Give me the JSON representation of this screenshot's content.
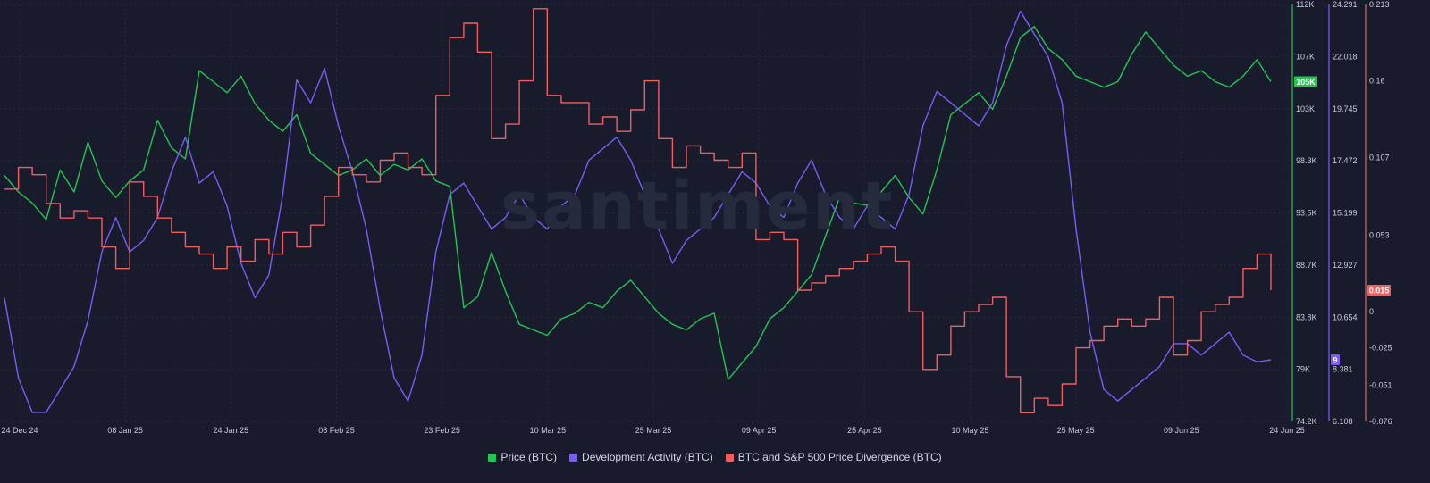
{
  "watermark": "santiment",
  "colors": {
    "background": "#181b2b",
    "grid": "#262a3c",
    "price": "#26c451",
    "dev": "#7b5cf5",
    "div": "#f05f5f"
  },
  "chart_data": {
    "type": "line",
    "grid": true,
    "legend_position": "bottom-center",
    "x_ticks": [
      "24 Dec 24",
      "08 Jan 25",
      "24 Jan 25",
      "08 Feb 25",
      "23 Feb 25",
      "10 Mar 25",
      "25 Mar 25",
      "09 Apr 25",
      "25 Apr 25",
      "10 May 25",
      "25 May 25",
      "09 Jun 25",
      "24 Jun 25"
    ],
    "axes": {
      "price": {
        "ticks": [
          "112K",
          "107K",
          "103K",
          "98.3K",
          "93.5K",
          "88.7K",
          "83.8K",
          "79K",
          "74.2K"
        ],
        "ylim": [
          74200,
          112000
        ],
        "current_label": "105K"
      },
      "dev": {
        "ticks": [
          "24.291",
          "22.018",
          "19.745",
          "17.472",
          "15.199",
          "12.927",
          "10.654",
          "8.381",
          "6.108"
        ],
        "ylim": [
          6.108,
          24.291
        ],
        "current_label": "9"
      },
      "div": {
        "ticks": [
          "0.213",
          "0.16",
          "0.107",
          "0.053",
          "0",
          "-0.025",
          "-0.051",
          "-0.076"
        ],
        "tick_values": [
          0.213,
          0.16,
          0.107,
          0.053,
          0,
          -0.025,
          -0.051,
          -0.076
        ],
        "ylim": [
          -0.076,
          0.213
        ],
        "current_label": "0.015"
      }
    },
    "series": [
      {
        "name": "Price (BTC)",
        "key": "price",
        "values": [
          96500,
          95000,
          94000,
          92500,
          97000,
          95000,
          99500,
          96000,
          94500,
          96000,
          97000,
          101500,
          99000,
          98000,
          106000,
          105000,
          104000,
          105500,
          103000,
          101500,
          100500,
          102000,
          98500,
          97500,
          96500,
          97000,
          98000,
          96500,
          97500,
          97000,
          98000,
          96000,
          95500,
          84500,
          85500,
          89500,
          86000,
          83000,
          82500,
          82000,
          83500,
          84000,
          85000,
          84500,
          86000,
          87000,
          85500,
          84000,
          83000,
          82500,
          83500,
          84000,
          78000,
          79500,
          81000,
          83500,
          84500,
          86000,
          87500,
          91000,
          94500,
          94000,
          93800,
          95000,
          96500,
          94500,
          93000,
          97000,
          102000,
          103000,
          104000,
          102500,
          105500,
          109000,
          110000,
          108000,
          107000,
          105500,
          105000,
          104500,
          105000,
          107500,
          109500,
          108000,
          106500,
          105500,
          106000,
          105000,
          104500,
          105500,
          107000,
          105000
        ]
      },
      {
        "name": "Development Activity (BTC)",
        "key": "dev",
        "values": [
          11.5,
          8.0,
          6.5,
          6.5,
          7.5,
          8.5,
          10.5,
          13.5,
          15.0,
          13.5,
          14.0,
          15.0,
          17.0,
          18.5,
          16.5,
          17.0,
          15.5,
          13.0,
          11.5,
          12.5,
          16.0,
          21.0,
          20.0,
          21.5,
          19.0,
          17.0,
          14.5,
          11.0,
          8.0,
          7.0,
          9.0,
          13.5,
          16.0,
          16.5,
          15.5,
          14.5,
          15.0,
          16.0,
          15.0,
          14.5,
          15.5,
          16.0,
          17.5,
          18.0,
          18.5,
          17.5,
          16.0,
          14.5,
          13.0,
          14.0,
          14.5,
          15.0,
          16.0,
          17.0,
          16.5,
          15.5,
          15.0,
          16.5,
          17.5,
          16.0,
          15.0,
          14.5,
          15.5,
          15.0,
          14.5,
          16.0,
          19.0,
          20.5,
          20.0,
          19.5,
          19.0,
          20.0,
          22.5,
          24.0,
          23.0,
          22.0,
          20.0,
          14.5,
          10.0,
          7.5,
          7.0,
          7.5,
          8.0,
          8.5,
          9.5,
          9.5,
          9.0,
          9.5,
          10.0,
          9.0,
          8.7,
          8.8
        ]
      },
      {
        "name": "BTC and S&P 500 Price Divergence (BTC)",
        "key": "div",
        "values": [
          0.085,
          0.1,
          0.095,
          0.075,
          0.065,
          0.07,
          0.065,
          0.045,
          0.03,
          0.09,
          0.08,
          0.065,
          0.055,
          0.045,
          0.04,
          0.03,
          0.045,
          0.035,
          0.05,
          0.04,
          0.055,
          0.045,
          0.06,
          0.08,
          0.1,
          0.095,
          0.09,
          0.105,
          0.11,
          0.1,
          0.095,
          0.15,
          0.19,
          0.2,
          0.18,
          0.12,
          0.13,
          0.16,
          0.21,
          0.15,
          0.145,
          0.145,
          0.13,
          0.135,
          0.125,
          0.14,
          0.16,
          0.12,
          0.1,
          0.115,
          0.11,
          0.105,
          0.1,
          0.11,
          0.05,
          0.055,
          0.05,
          0.015,
          0.02,
          0.025,
          0.03,
          0.035,
          0.04,
          0.045,
          0.035,
          0.0,
          -0.04,
          -0.03,
          -0.01,
          0.0,
          0.005,
          0.01,
          -0.045,
          -0.07,
          -0.06,
          -0.065,
          -0.05,
          -0.025,
          -0.02,
          -0.01,
          -0.005,
          -0.01,
          -0.005,
          0.01,
          -0.03,
          -0.02,
          0.0,
          0.005,
          0.01,
          0.03,
          0.04,
          0.015
        ]
      }
    ]
  }
}
